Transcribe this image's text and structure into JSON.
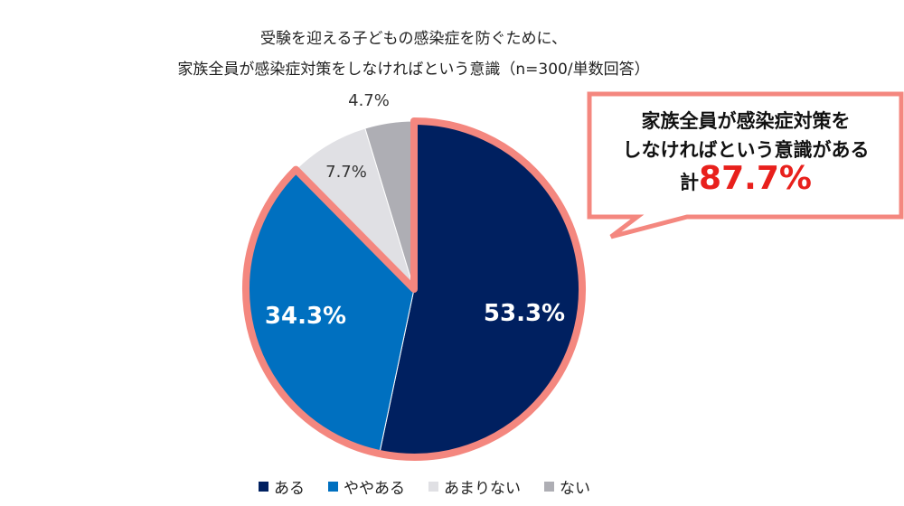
{
  "chart_data": {
    "type": "pie",
    "title": [
      "受験を迎える子どもの感染症を防ぐために、",
      "家族全員が感染症対策をしなければという意識（n=300/単数回答）"
    ],
    "categories": [
      "ある",
      "ややある",
      "あまりない",
      "ない"
    ],
    "values": [
      53.3,
      34.3,
      7.7,
      4.7
    ],
    "labels": [
      "53.3%",
      "34.3%",
      "7.7%",
      "4.7%"
    ],
    "colors": [
      "#002060",
      "#0070c0",
      "#e0e0e4",
      "#aeaeb4"
    ],
    "highlight_color": "#f4877f",
    "legend_position": "bottom",
    "annotation": {
      "line1": "家族全員が感染症対策を",
      "line2": "しなければという意識がある",
      "prefix": "計",
      "value": "87.7%"
    }
  }
}
